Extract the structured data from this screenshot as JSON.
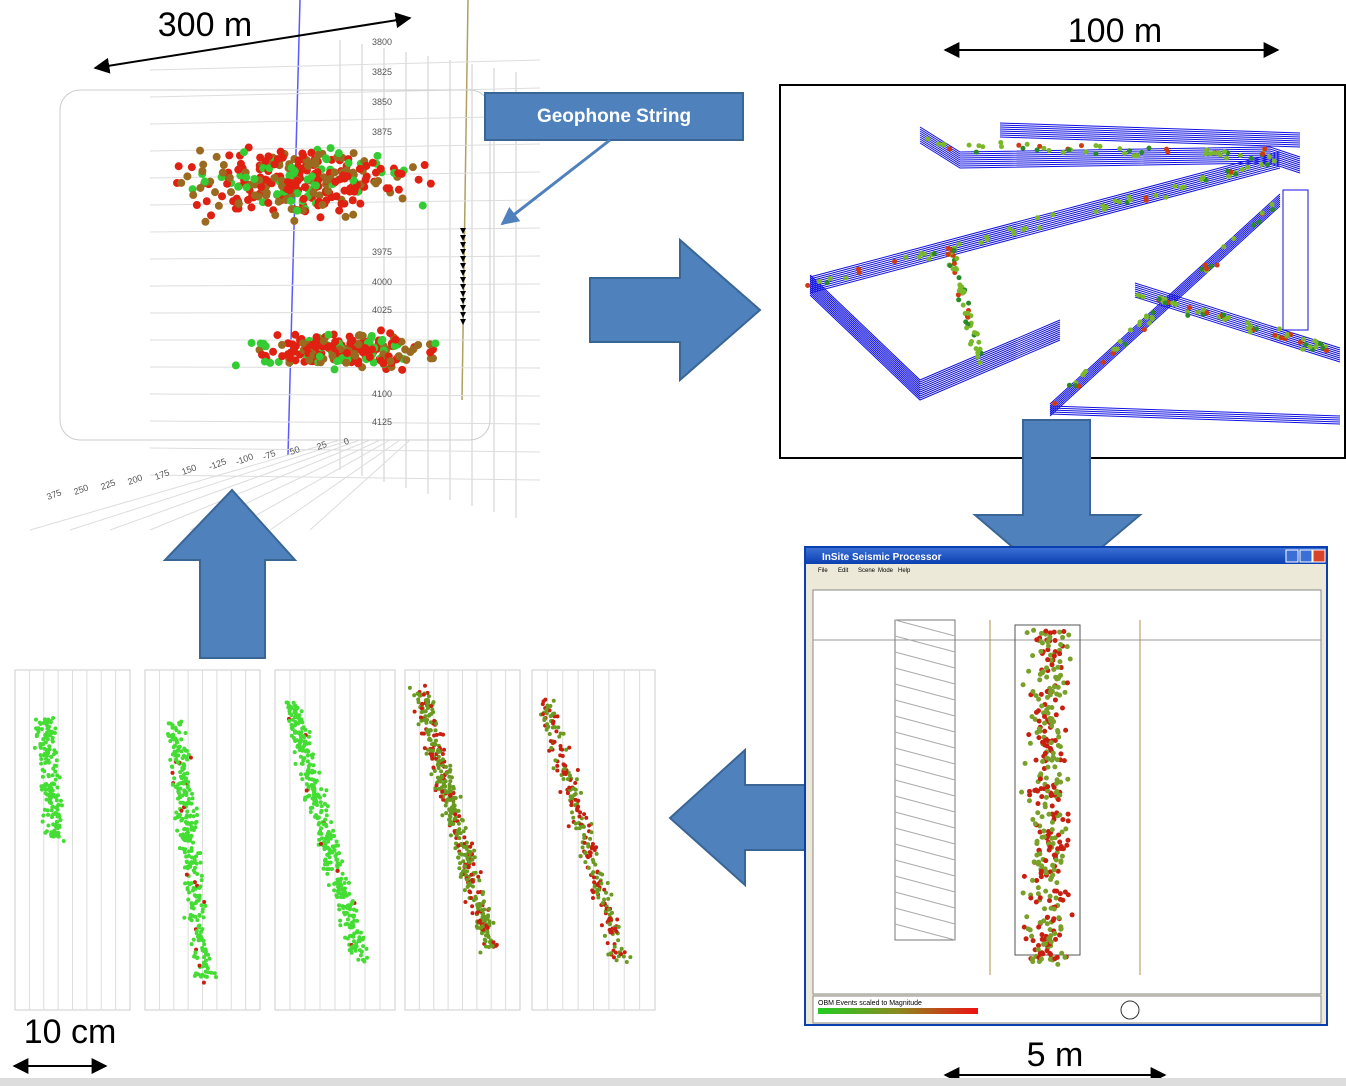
{
  "scale_labels": {
    "top_left": "300 m",
    "top_right": "100 m",
    "bottom_right": "5 m",
    "bottom_left": "10 cm"
  },
  "callout": "Geophone String",
  "plot3d": {
    "depth_labels": [
      "3800",
      "3825",
      "3850",
      "3875",
      "3975",
      "4000",
      "4025",
      "4100",
      "4125"
    ],
    "x_labels": [
      "375",
      "250",
      "225",
      "200",
      "175",
      "150",
      "-125",
      "-100",
      "-75",
      "50",
      "25",
      "0"
    ]
  },
  "window": {
    "title": "InSite Seismic Processor",
    "menu": [
      "File",
      "Edit",
      "Scene",
      "Mode",
      "Help"
    ],
    "status": "OBM Events scaled to Magnitude"
  }
}
